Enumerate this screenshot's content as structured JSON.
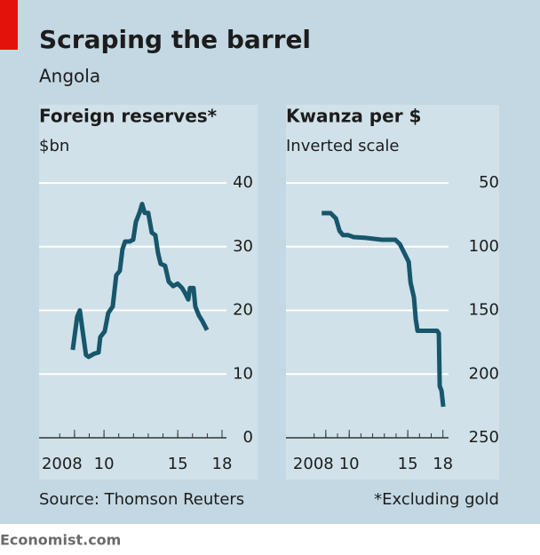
{
  "title": "Scraping the barrel",
  "subtitle": "Angola",
  "source": "Source: Thomson Reuters",
  "footnote": "*Excluding gold",
  "brand": "Economist.com",
  "chart_data": [
    {
      "type": "line",
      "title": "Foreign reserves*",
      "subtitle": "$bn",
      "color": "#17566b",
      "x": [
        2007.88,
        2008.18,
        2008.36,
        2008.54,
        2008.78,
        2008.96,
        2009.33,
        2009.63,
        2009.75,
        2010.05,
        2010.29,
        2010.59,
        2010.83,
        2011.07,
        2011.25,
        2011.43,
        2011.73,
        2011.98,
        2012.16,
        2012.4,
        2012.58,
        2012.76,
        2013.0,
        2013.24,
        2013.48,
        2013.66,
        2013.84,
        2014.14,
        2014.39,
        2014.69,
        2014.99,
        2015.29,
        2015.47,
        2015.71,
        2015.83,
        2016.07,
        2016.19,
        2016.43,
        2016.67,
        2016.98
      ],
      "values": [
        13.8,
        19,
        20,
        17,
        13,
        12.7,
        13.2,
        13.4,
        15.8,
        16.7,
        19.6,
        20.6,
        25.5,
        26.2,
        29.6,
        30.8,
        30.8,
        31.1,
        33.9,
        35.3,
        36.7,
        35.3,
        35.3,
        32.2,
        31.8,
        29,
        27.3,
        27,
        24.5,
        23.8,
        24.2,
        23.5,
        22.8,
        21.7,
        23.5,
        23.5,
        20.6,
        19.2,
        18.3,
        16.9
      ],
      "xlim": [
        2005.6,
        2018
      ],
      "ylim": [
        0,
        40
      ],
      "yticks": [
        0,
        10,
        20,
        30,
        40
      ],
      "xticks": [
        {
          "value": 2008,
          "label": "2008"
        },
        {
          "value": 2010,
          "label": "10"
        },
        {
          "value": 2015,
          "label": "15"
        },
        {
          "value": 2018,
          "label": "18"
        }
      ],
      "minor_xticks": [
        2007,
        2008,
        2009,
        2010,
        2011,
        2012,
        2013,
        2014,
        2015,
        2016,
        2017
      ],
      "inverted": false
    },
    {
      "type": "line",
      "title": "Kwanza per $",
      "subtitle": "Inverted scale",
      "color": "#17566b",
      "x": [
        2007.65,
        2008.41,
        2008.86,
        2009.17,
        2009.47,
        2009.92,
        2010.38,
        2011.29,
        2012.8,
        2013.94,
        2014.32,
        2014.7,
        2015.08,
        2015.23,
        2015.53,
        2015.68,
        2015.83,
        2016.21,
        2017.5,
        2017.65,
        2017.73,
        2017.88,
        2018.03
      ],
      "values": [
        73.7,
        73.7,
        77.9,
        87.6,
        91,
        91,
        92.5,
        93,
        94.6,
        94.6,
        98,
        105,
        112,
        128,
        140,
        157,
        166,
        166,
        166,
        168,
        209.5,
        213,
        225.6
      ],
      "xlim": [
        2004.6,
        2018.1
      ],
      "ylim": [
        50,
        250
      ],
      "yticks": [
        50,
        100,
        150,
        200,
        250
      ],
      "xticks": [
        {
          "value": 2008,
          "label": "2008"
        },
        {
          "value": 2010,
          "label": "10"
        },
        {
          "value": 2015,
          "label": "15"
        },
        {
          "value": 2018,
          "label": "18"
        }
      ],
      "minor_xticks": [
        2007,
        2008,
        2009,
        2010,
        2011,
        2012,
        2013,
        2014,
        2015,
        2016,
        2017
      ],
      "inverted": true
    }
  ]
}
